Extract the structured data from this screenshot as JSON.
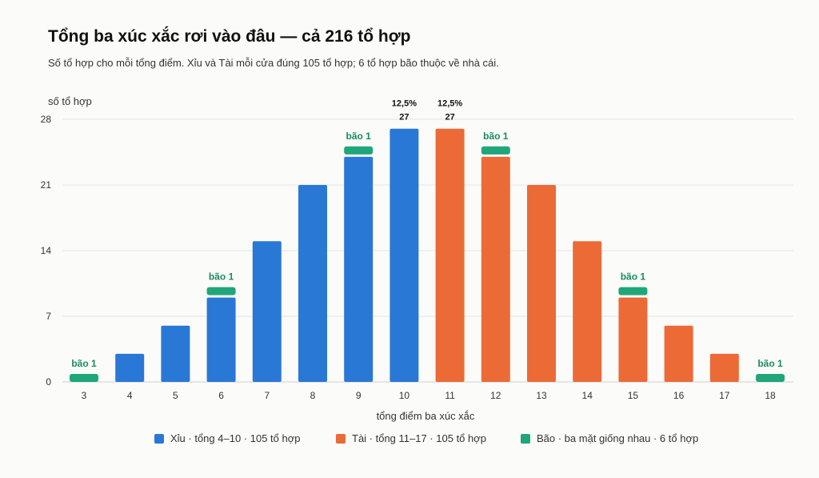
{
  "title": "Tổng ba xúc xắc rơi vào đâu — cả 216 tổ hợp",
  "subtitle": "Số tổ hợp cho mỗi tổng điểm. Xỉu và Tài mỗi cửa đúng 105 tổ hợp; 6 tổ hợp bão thuộc về nhà cái.",
  "colors": {
    "xiu": "#2a78d6",
    "tai": "#ec6a36",
    "bao": "#1fa67a"
  },
  "chart_data": {
    "type": "bar",
    "title": "Tổng ba xúc xắc rơi vào đâu — cả 216 tổ hợp",
    "subtitle": "Số tổ hợp cho mỗi tổng điểm. Xỉu và Tài mỗi cửa đúng 105 tổ hợp; 6 tổ hợp bão thuộc về nhà cái.",
    "xlabel": "tổng điểm ba xúc xắc",
    "ylabel": "số tổ hợp",
    "ylim": [
      0,
      28
    ],
    "yticks": [
      "0",
      "7",
      "14",
      "21",
      "28"
    ],
    "grid": true,
    "legend_position": "bottom",
    "categories": [
      "3",
      "4",
      "5",
      "6",
      "7",
      "8",
      "9",
      "10",
      "11",
      "12",
      "13",
      "14",
      "15",
      "16",
      "17",
      "18"
    ],
    "series": [
      {
        "name": "Xỉu · tổng 4–10 · 105 tổ hợp",
        "key": "xiu",
        "values": [
          0,
          3,
          6,
          9,
          15,
          21,
          24,
          27,
          0,
          0,
          0,
          0,
          0,
          0,
          0,
          0
        ]
      },
      {
        "name": "Tài · tổng 11–17 · 105 tổ hợp",
        "key": "tai",
        "values": [
          0,
          0,
          0,
          0,
          0,
          0,
          0,
          0,
          27,
          24,
          21,
          15,
          9,
          6,
          3,
          0
        ]
      },
      {
        "name": "Bão · ba mặt giống nhau · 6 tổ hợp",
        "key": "bao",
        "values": [
          1,
          0,
          0,
          1,
          0,
          0,
          1,
          0,
          0,
          1,
          0,
          0,
          1,
          0,
          0,
          1
        ]
      }
    ],
    "annotations": [
      {
        "category": "3",
        "text": "bão 1"
      },
      {
        "category": "6",
        "text": "bão 1"
      },
      {
        "category": "9",
        "text": "bão 1"
      },
      {
        "category": "12",
        "text": "bão 1"
      },
      {
        "category": "15",
        "text": "bão 1"
      },
      {
        "category": "18",
        "text": "bão 1"
      },
      {
        "category": "10",
        "text": "12,5%",
        "value_label": "27"
      },
      {
        "category": "11",
        "text": "12,5%",
        "value_label": "27"
      }
    ]
  }
}
